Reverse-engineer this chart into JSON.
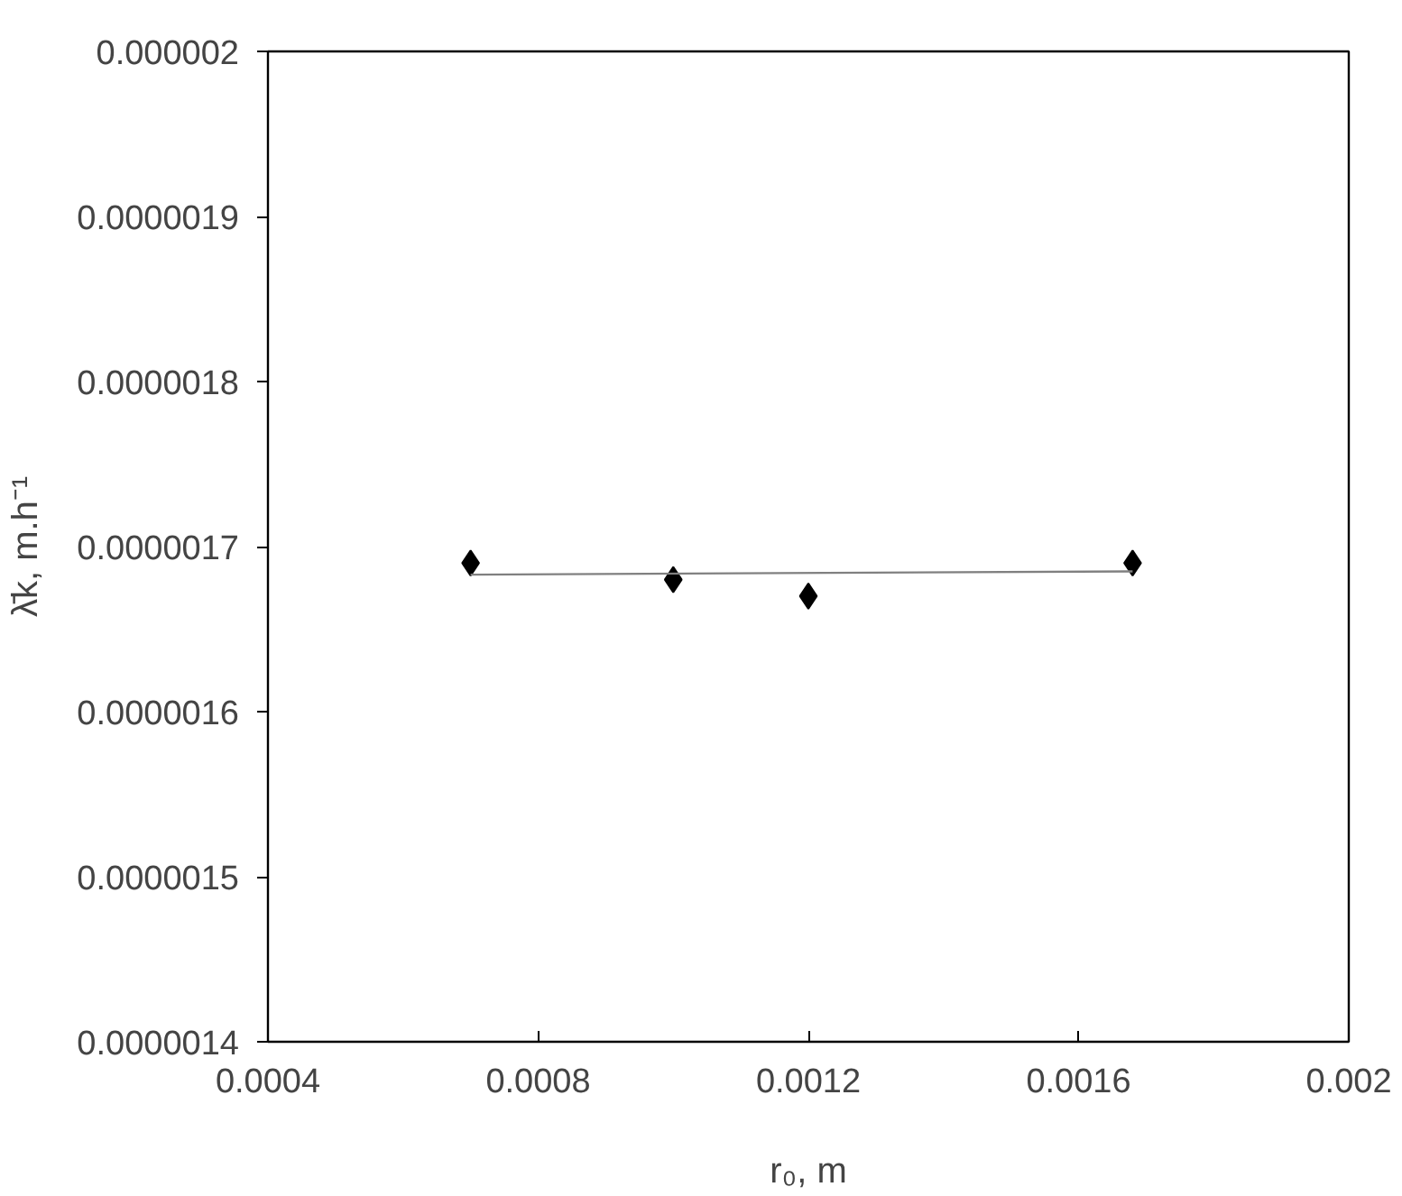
{
  "chart_data": {
    "type": "scatter",
    "xlabel": "r₀, m",
    "ylabel": "λ̄k, m.h⁻¹",
    "xlim": [
      0.0004,
      0.002
    ],
    "ylim": [
      1.4e-06,
      2e-06
    ],
    "xticks": [
      {
        "value": 0.0004,
        "label": "0.0004"
      },
      {
        "value": 0.0008,
        "label": "0.0008"
      },
      {
        "value": 0.0012,
        "label": "0.0012"
      },
      {
        "value": 0.0016,
        "label": "0.0016"
      },
      {
        "value": 0.002,
        "label": "0.002"
      }
    ],
    "yticks": [
      {
        "value": 1.4e-06,
        "label": "0.0000014"
      },
      {
        "value": 1.5e-06,
        "label": "0.0000015"
      },
      {
        "value": 1.6e-06,
        "label": "0.0000016"
      },
      {
        "value": 1.7e-06,
        "label": "0.0000017"
      },
      {
        "value": 1.8e-06,
        "label": "0.0000018"
      },
      {
        "value": 1.9e-06,
        "label": "0.0000019"
      },
      {
        "value": 2e-06,
        "label": "0.000002"
      }
    ],
    "grid": false,
    "marker": "diamond",
    "series": [
      {
        "color": "#000000",
        "x": [
          0.0007,
          0.001,
          0.0012,
          0.00168
        ],
        "values": [
          1.69e-06,
          1.68e-06,
          1.67e-06,
          1.69e-06
        ]
      },
      {
        "type": "line",
        "color": "#808080",
        "marker": "none",
        "x": [
          0.0007,
          0.00168
        ],
        "values": [
          1.683e-06,
          1.685e-06
        ]
      }
    ]
  }
}
